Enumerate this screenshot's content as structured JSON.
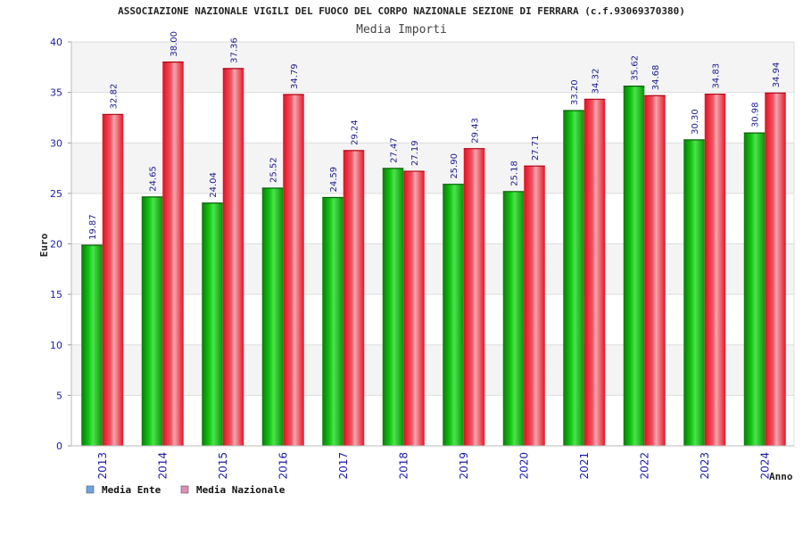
{
  "chart_data": {
    "type": "bar",
    "title": "ASSOCIAZIONE NAZIONALE VIGILI DEL FUOCO DEL CORPO NAZIONALE SEZIONE DI FERRARA (c.f.93069370380)",
    "subtitle": "Media Importi",
    "xlabel": "Anno",
    "ylabel": "Euro",
    "ylim": [
      0,
      40
    ],
    "yticks": [
      0,
      5,
      10,
      15,
      20,
      25,
      30,
      35,
      40
    ],
    "grid": true,
    "legend_position": "bottom-left",
    "categories": [
      "2013",
      "2014",
      "2015",
      "2016",
      "2017",
      "2018",
      "2019",
      "2020",
      "2021",
      "2022",
      "2023",
      "2024"
    ],
    "series": [
      {
        "name": "Media Ente",
        "legend_color": "#6aa5e8",
        "bar_color": "#10b010",
        "values": [
          19.87,
          24.65,
          24.04,
          25.52,
          24.59,
          27.47,
          25.9,
          25.18,
          33.2,
          35.62,
          30.3,
          30.98
        ],
        "labels": [
          "19.87",
          "24.65",
          "24.04",
          "25.52",
          "24.59",
          "27.47",
          "25.90",
          "25.18",
          "33.20",
          "35.62",
          "30.30",
          "30.98"
        ]
      },
      {
        "name": "Media Nazionale",
        "legend_color": "#e090b8",
        "bar_color": "#ee2030",
        "values": [
          32.82,
          38.0,
          37.36,
          34.79,
          29.24,
          27.19,
          29.43,
          27.71,
          34.32,
          34.68,
          34.83,
          34.94
        ],
        "labels": [
          "32.82",
          "38.00",
          "37.36",
          "34.79",
          "29.24",
          "27.19",
          "29.43",
          "27.71",
          "34.32",
          "34.68",
          "34.83",
          "34.94"
        ]
      }
    ]
  }
}
